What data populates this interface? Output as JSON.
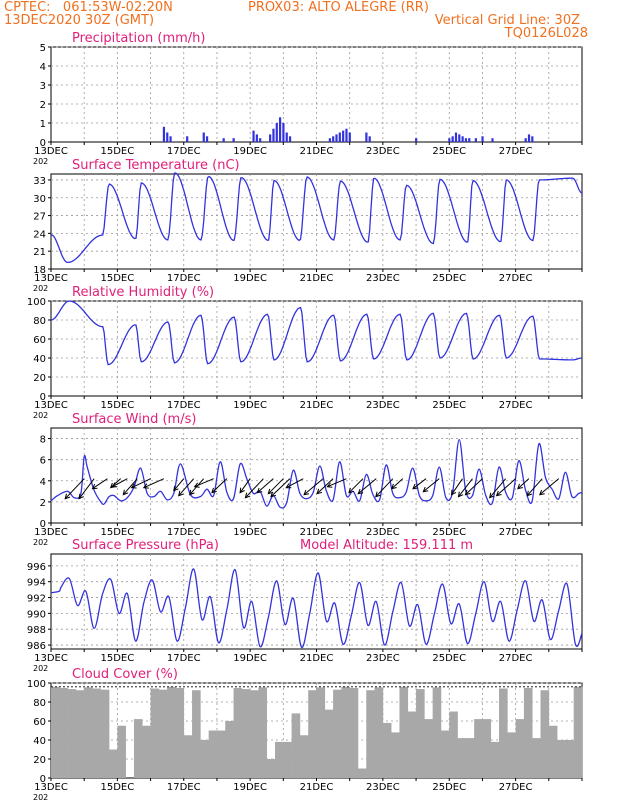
{
  "header": {
    "line1_left": "CPTEC:   061:53W-02:20N",
    "line1_center": "PROX03: ALTO ALEGRE (RR)",
    "line2_left": "13DEC2020 30Z (GMT)",
    "line2_right": "Vertical Grid Line: 30Z",
    "line3_right": "TQ0126L028"
  },
  "colors": {
    "series": "#3333dd",
    "title": "#e0207a",
    "header": "#f07020",
    "cloud": "#a8a8a8",
    "wind": "#000000"
  },
  "x_axis": {
    "start": "13DEC",
    "end": "28DEC",
    "ticks": [
      "13DEC",
      "15DEC",
      "17DEC",
      "19DEC",
      "21DEC",
      "23DEC",
      "25DEC",
      "27DEC"
    ],
    "year_fragment": "202"
  },
  "chart_data": [
    {
      "id": "precip",
      "type": "bar",
      "title": "Precipitation (mm/h)",
      "ylim": [
        0,
        5
      ],
      "yticks": [
        0,
        1,
        2,
        3,
        4,
        5
      ],
      "grid": true,
      "bars": [
        [
          3.4,
          0.8
        ],
        [
          3.5,
          0.5
        ],
        [
          3.6,
          0.3
        ],
        [
          4.1,
          0.3
        ],
        [
          4.6,
          0.5
        ],
        [
          4.7,
          0.3
        ],
        [
          5.2,
          0.2
        ],
        [
          5.5,
          0.2
        ],
        [
          6.1,
          0.6
        ],
        [
          6.2,
          0.4
        ],
        [
          6.3,
          0.2
        ],
        [
          6.6,
          0.4
        ],
        [
          6.7,
          0.7
        ],
        [
          6.8,
          1.0
        ],
        [
          6.9,
          1.3
        ],
        [
          7.0,
          1.0
        ],
        [
          7.1,
          0.5
        ],
        [
          7.2,
          0.3
        ],
        [
          8.4,
          0.2
        ],
        [
          8.5,
          0.3
        ],
        [
          8.6,
          0.4
        ],
        [
          8.7,
          0.5
        ],
        [
          8.8,
          0.6
        ],
        [
          8.9,
          0.7
        ],
        [
          9.0,
          0.5
        ],
        [
          9.5,
          0.5
        ],
        [
          9.6,
          0.3
        ],
        [
          11.0,
          0.2
        ],
        [
          12.0,
          0.2
        ],
        [
          12.1,
          0.3
        ],
        [
          12.2,
          0.5
        ],
        [
          12.3,
          0.4
        ],
        [
          12.4,
          0.3
        ],
        [
          12.5,
          0.2
        ],
        [
          12.6,
          0.2
        ],
        [
          12.8,
          0.2
        ],
        [
          13.0,
          0.3
        ],
        [
          13.3,
          0.2
        ],
        [
          14.3,
          0.2
        ],
        [
          14.4,
          0.4
        ],
        [
          14.5,
          0.3
        ]
      ]
    },
    {
      "id": "temp",
      "type": "line",
      "title": "Surface Temperature (nC)",
      "ylim": [
        18,
        34
      ],
      "yticks": [
        18,
        21,
        24,
        27,
        30,
        33
      ],
      "grid": true,
      "max_times": [
        1.75,
        2.72,
        3.73,
        4.74,
        5.73,
        6.72,
        7.71,
        8.72,
        9.73,
        10.71,
        11.72,
        12.71,
        13.72,
        14.71,
        15.72
      ],
      "min_times": [
        0.5,
        1.55,
        2.55,
        3.52,
        4.52,
        5.51,
        6.55,
        7.5,
        8.52,
        9.55,
        10.52,
        11.52,
        12.55,
        13.55,
        14.52
      ],
      "max_values": [
        32.3,
        32.5,
        34.2,
        33.6,
        33.4,
        32.9,
        33.5,
        32.8,
        33.3,
        32.1,
        33.1,
        32.9,
        33.0,
        33.0,
        33.3
      ],
      "min_values": [
        19.1,
        23.7,
        23.1,
        22.9,
        22.9,
        22.8,
        22.8,
        22.8,
        22.9,
        22.5,
        22.9,
        22.3,
        22.5,
        22.6,
        22.8
      ],
      "start_value": 23.8,
      "end_value": 30.8
    },
    {
      "id": "rh",
      "type": "line",
      "title": "Relative Humidity (%)",
      "ylim": [
        0,
        100
      ],
      "yticks": [
        0,
        20,
        40,
        60,
        80,
        100
      ],
      "grid": true,
      "max_times": [
        0.55,
        1.56,
        2.55,
        3.53,
        4.52,
        5.52,
        6.53,
        7.52,
        8.52,
        9.52,
        10.52,
        11.52,
        12.52,
        13.52,
        14.52
      ],
      "min_times": [
        1.72,
        2.72,
        3.72,
        4.72,
        5.72,
        6.72,
        7.72,
        8.72,
        9.72,
        10.72,
        11.72,
        12.72,
        13.72,
        14.72,
        15.72
      ],
      "max_values": [
        100,
        73,
        75,
        78,
        85,
        83,
        86,
        93,
        85,
        86,
        86,
        87,
        87,
        85,
        84
      ],
      "min_values": [
        33,
        36,
        35,
        34,
        36,
        38,
        36,
        37,
        39,
        38,
        40,
        39,
        40,
        39,
        38
      ],
      "start_value": 80,
      "end_value": 40
    },
    {
      "id": "wind",
      "type": "line",
      "title": "Surface Wind (m/s)",
      "ylim": [
        0,
        9
      ],
      "yticks": [
        0,
        2,
        4,
        6,
        8
      ],
      "grid": true,
      "speed_x": [
        0,
        0.2,
        0.5,
        0.7,
        0.9,
        1.0,
        1.1,
        1.3,
        1.5,
        1.6,
        1.75,
        1.9,
        2.1,
        2.3,
        2.5,
        2.7,
        2.9,
        3.1,
        3.3,
        3.5,
        3.7,
        3.9,
        4.2,
        4.5,
        4.7,
        4.9,
        5.1,
        5.3,
        5.5,
        5.7,
        5.9,
        6.1,
        6.3,
        6.5,
        6.7,
        6.9,
        7.1,
        7.3,
        7.5,
        7.7,
        7.9,
        8.1,
        8.3,
        8.5,
        8.7,
        8.9,
        9.1,
        9.3,
        9.5,
        9.7,
        9.9,
        10.1,
        10.3,
        10.5,
        10.7,
        10.9,
        11.1,
        11.3,
        11.5,
        11.7,
        11.9,
        12.1,
        12.3,
        12.5,
        12.7,
        12.9,
        13.1,
        13.3,
        13.5,
        13.7,
        13.9,
        14.1,
        14.3,
        14.5,
        14.7,
        14.9,
        15.1,
        15.3,
        15.5,
        15.7,
        15.9,
        16.0
      ],
      "speed_y": [
        2.1,
        2.6,
        3.0,
        2.4,
        2.8,
        6.3,
        5.2,
        3.1,
        2.0,
        1.8,
        2.5,
        2.6,
        2.1,
        2.4,
        3.4,
        5.2,
        2.8,
        2.5,
        3.0,
        2.2,
        2.8,
        5.6,
        2.7,
        2.5,
        3.2,
        2.6,
        5.8,
        2.9,
        2.3,
        5.6,
        4.2,
        2.8,
        3.0,
        1.6,
        2.6,
        1.5,
        1.9,
        5.0,
        2.8,
        2.3,
        2.9,
        5.4,
        3.0,
        2.2,
        5.8,
        2.6,
        3.0,
        2.1,
        4.6,
        2.7,
        2.2,
        5.5,
        2.8,
        2.4,
        2.9,
        5.2,
        2.6,
        2.1,
        2.6,
        5.3,
        2.4,
        2.9,
        7.9,
        3.0,
        2.6,
        5.1,
        2.6,
        1.9,
        5.3,
        2.9,
        2.4,
        5.9,
        3.1,
        2.1,
        7.5,
        4.3,
        3.2,
        2.3,
        4.8,
        2.5,
        2.8,
        2.9
      ],
      "arrows": [
        [
          1.0,
          -1.9,
          -2.0
        ],
        [
          1.3,
          -1.5,
          -2.0
        ],
        [
          1.7,
          -1.5,
          -1.0
        ],
        [
          2.1,
          -1.0,
          -0.9
        ],
        [
          2.3,
          -1.5,
          -0.8
        ],
        [
          2.6,
          -1.4,
          -1.6
        ],
        [
          3.0,
          -1.9,
          -0.9
        ],
        [
          3.4,
          -2.0,
          -0.9
        ],
        [
          4.0,
          -1.0,
          -1.2
        ],
        [
          4.3,
          -1.5,
          -1.7
        ],
        [
          4.6,
          -1.4,
          -1.6
        ],
        [
          4.9,
          -1.9,
          -0.8
        ],
        [
          5.3,
          -1.5,
          -1.4
        ],
        [
          6.0,
          -1.0,
          -1.4
        ],
        [
          6.4,
          -1.8,
          -1.9
        ],
        [
          6.7,
          -1.6,
          -1.4
        ],
        [
          7.0,
          -1.5,
          -1.5
        ],
        [
          7.2,
          -1.9,
          -1.8
        ],
        [
          7.6,
          -1.7,
          -0.9
        ],
        [
          8.2,
          -1.9,
          -1.6
        ],
        [
          8.5,
          -1.6,
          -1.5
        ],
        [
          8.9,
          -1.9,
          -0.8
        ],
        [
          9.4,
          -1.4,
          -1.4
        ],
        [
          9.8,
          -1.8,
          -1.5
        ],
        [
          10.3,
          -1.7,
          -1.8
        ],
        [
          10.6,
          -1.1,
          -1.0
        ],
        [
          11.3,
          -1.3,
          -1.0
        ],
        [
          11.7,
          -1.6,
          -1.3
        ],
        [
          12.4,
          -1.1,
          -1.6
        ],
        [
          12.7,
          -1.4,
          -1.8
        ],
        [
          13.0,
          -1.7,
          -1.6
        ],
        [
          13.7,
          -1.6,
          -1.9
        ],
        [
          14.0,
          -1.9,
          -1.7
        ],
        [
          14.4,
          -1.1,
          -1.0
        ],
        [
          14.8,
          -1.5,
          -1.7
        ],
        [
          15.3,
          -1.9,
          -1.6
        ]
      ]
    },
    {
      "id": "pressure",
      "type": "line",
      "title": "Surface Pressure (hPa)",
      "annotation": "Model Altitude: 159.111 m",
      "ylim": [
        985.5,
        997.5
      ],
      "yticks": [
        986,
        988,
        990,
        992,
        994,
        996
      ],
      "grid": true,
      "times": [
        0.0,
        0.25,
        0.3,
        0.55,
        0.8,
        1.05,
        1.3,
        1.55,
        1.8,
        2.05,
        2.3,
        2.55,
        2.8,
        3.05,
        3.3,
        3.55,
        3.8,
        4.05,
        4.3,
        4.55,
        4.8,
        5.05,
        5.3,
        5.55,
        5.8,
        6.05,
        6.3,
        6.55,
        6.8,
        7.05,
        7.3,
        7.55,
        7.8,
        8.05,
        8.3,
        8.55,
        8.8,
        9.05,
        9.3,
        9.55,
        9.8,
        10.05,
        10.3,
        10.55,
        10.8,
        11.05,
        11.3,
        11.55,
        11.8,
        12.05,
        12.3,
        12.55,
        12.8,
        13.05,
        13.3,
        13.55,
        13.8,
        14.05,
        14.3,
        14.55,
        14.8,
        15.05,
        15.3,
        15.55,
        15.8,
        16.0
      ],
      "values": [
        992.6,
        992.8,
        993.3,
        994.4,
        991.0,
        992.8,
        988.1,
        992.4,
        994.3,
        990.0,
        992.5,
        986.5,
        991.4,
        994.2,
        990.2,
        992.1,
        986.5,
        990.7,
        995.6,
        989.2,
        992.1,
        986.3,
        990.5,
        995.5,
        988.2,
        991.5,
        985.8,
        989.5,
        994.1,
        988.6,
        991.9,
        985.7,
        990.1,
        995.1,
        989.0,
        991.3,
        986.1,
        989.7,
        993.9,
        988.5,
        991.5,
        986.0,
        990.2,
        993.9,
        988.4,
        991.1,
        986.1,
        989.9,
        993.7,
        988.7,
        991.2,
        986.2,
        990.0,
        994.0,
        989.0,
        991.5,
        986.5,
        990.5,
        994.1,
        989.0,
        991.7,
        986.7,
        990.4,
        993.7,
        986.1,
        987.5
      ]
    },
    {
      "id": "cloud",
      "type": "bar",
      "title": "Cloud Cover (%)",
      "ylim": [
        0,
        100
      ],
      "yticks": [
        0,
        20,
        40,
        60,
        80,
        100
      ],
      "grid": true,
      "base_value": 96,
      "dips": [
        [
          1.8,
          30
        ],
        [
          2.2,
          55
        ],
        [
          2.3,
          0
        ],
        [
          2.6,
          62
        ],
        [
          2.9,
          55
        ],
        [
          4.2,
          45
        ],
        [
          4.6,
          40
        ],
        [
          5.0,
          50
        ],
        [
          5.4,
          60
        ],
        [
          6.6,
          20
        ],
        [
          7.0,
          38
        ],
        [
          7.4,
          68
        ],
        [
          7.6,
          45
        ],
        [
          8.3,
          72
        ],
        [
          9.3,
          10
        ],
        [
          10.1,
          58
        ],
        [
          10.4,
          48
        ],
        [
          10.8,
          70
        ],
        [
          11.3,
          62
        ],
        [
          11.9,
          50
        ],
        [
          12.2,
          70
        ],
        [
          12.5,
          42
        ],
        [
          13.0,
          62
        ],
        [
          13.4,
          38
        ],
        [
          13.8,
          48
        ],
        [
          14.1,
          62
        ],
        [
          14.6,
          42
        ],
        [
          15.1,
          55
        ],
        [
          15.5,
          40
        ]
      ]
    }
  ]
}
